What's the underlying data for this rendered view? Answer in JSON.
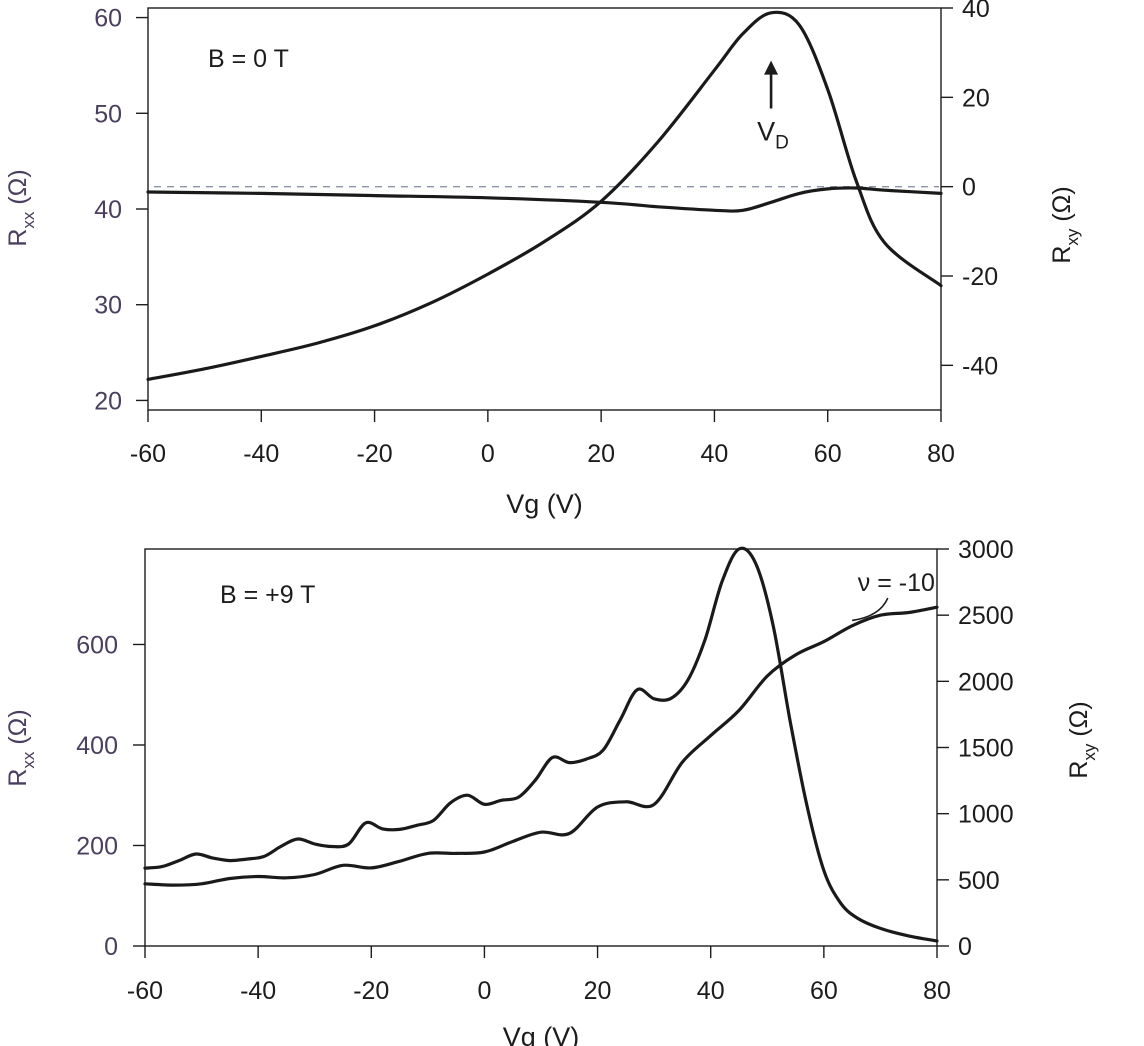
{
  "colors": {
    "left_axis": "#4a3f5e",
    "ink": "#1c1c1c",
    "curve": "#1a1a1a",
    "dashed": "#8a96a8"
  },
  "chart_data": [
    {
      "type": "line",
      "annotation": "B = 0 T",
      "xlabel": "Vg (V)",
      "ylabel_left": {
        "main": "R",
        "sub": "xx",
        "unit": " (Ω)"
      },
      "ylabel_right": {
        "main": "R",
        "sub": "xy",
        "unit": " (Ω)"
      },
      "xlim": [
        -60,
        80
      ],
      "ylim_left": [
        19,
        61
      ],
      "ylim_right": [
        -50,
        40
      ],
      "xticks": [
        -60,
        -40,
        -20,
        0,
        20,
        40,
        60,
        80
      ],
      "yticks_left": [
        20,
        30,
        40,
        50,
        60
      ],
      "yticks_right": [
        -40,
        -20,
        0,
        20,
        40
      ],
      "zero_reference_line": {
        "axis": "right",
        "value": 0
      },
      "peak_label": {
        "main": "V",
        "sub": "D",
        "x": 50,
        "y_tip": 55.5,
        "y_tail": 50.5,
        "axis": "left"
      },
      "series": [
        {
          "name": "Rxx",
          "axis": "left",
          "x": [
            -60,
            -50,
            -40,
            -30,
            -20,
            -10,
            0,
            10,
            20,
            30,
            40,
            45,
            50,
            55,
            60,
            65,
            70,
            80
          ],
          "y": [
            22.2,
            23.3,
            24.6,
            26.0,
            27.8,
            30.2,
            33.2,
            36.6,
            40.8,
            47.0,
            54.5,
            58.3,
            60.5,
            59.2,
            52.5,
            43.0,
            36.5,
            32.0
          ]
        },
        {
          "name": "Rxy",
          "axis": "right",
          "x": [
            -60,
            -40,
            -20,
            0,
            20,
            30,
            40,
            45,
            50,
            55,
            60,
            65,
            70,
            80
          ],
          "y": [
            -1.2,
            -1.5,
            -2.0,
            -2.5,
            -3.5,
            -4.5,
            -5.3,
            -5.3,
            -3.5,
            -1.5,
            -0.5,
            -0.3,
            -0.8,
            -1.5
          ]
        }
      ]
    },
    {
      "type": "line",
      "annotation": "B = +9 T",
      "xlabel": "Vg (V)",
      "ylabel_left": {
        "main": "R",
        "sub": "xx",
        "unit": " (Ω)"
      },
      "ylabel_right": {
        "main": "R",
        "sub": "xy",
        "unit": " (Ω)"
      },
      "xlim": [
        -60,
        80
      ],
      "ylim_left": [
        0,
        790
      ],
      "ylim_right": [
        0,
        3000
      ],
      "xticks": [
        -60,
        -40,
        -20,
        0,
        20,
        40,
        60,
        80
      ],
      "yticks_left": [
        0,
        200,
        400,
        600
      ],
      "yticks_right": [
        0,
        500,
        1000,
        1500,
        2000,
        2500,
        3000
      ],
      "nu_label": {
        "text": "ν = -10",
        "x": 66,
        "y": 2720,
        "pointer_x": 65,
        "pointer_y": 2460,
        "axis": "right"
      },
      "series": [
        {
          "name": "Rxx",
          "axis": "left",
          "x": [
            -60,
            -57,
            -54,
            -51,
            -48,
            -45,
            -42,
            -39,
            -36,
            -33,
            -30,
            -27,
            -24,
            -21,
            -18,
            -15,
            -12,
            -9,
            -6,
            -3,
            0,
            3,
            6,
            9,
            12,
            15,
            18,
            21,
            24,
            27,
            30,
            33,
            36,
            39,
            42,
            45,
            48,
            51,
            54,
            57,
            60,
            63,
            66,
            70,
            75,
            80
          ],
          "y": [
            155,
            158,
            170,
            183,
            175,
            170,
            173,
            178,
            198,
            213,
            203,
            198,
            203,
            245,
            233,
            232,
            240,
            250,
            285,
            300,
            282,
            290,
            296,
            330,
            375,
            365,
            372,
            390,
            450,
            510,
            492,
            493,
            530,
            610,
            725,
            790,
            760,
            640,
            450,
            280,
            150,
            85,
            55,
            35,
            20,
            10
          ]
        },
        {
          "name": "Rxy",
          "axis": "right",
          "x": [
            -60,
            -55,
            -50,
            -45,
            -40,
            -35,
            -30,
            -25,
            -20,
            -15,
            -10,
            -5,
            0,
            5,
            10,
            15,
            20,
            25,
            30,
            35,
            40,
            45,
            50,
            55,
            60,
            65,
            70,
            75,
            80
          ],
          "y": [
            470,
            460,
            470,
            510,
            525,
            515,
            540,
            610,
            590,
            640,
            700,
            700,
            710,
            790,
            860,
            850,
            1050,
            1090,
            1070,
            1390,
            1590,
            1780,
            2040,
            2200,
            2300,
            2420,
            2500,
            2520,
            2560
          ]
        }
      ]
    }
  ]
}
